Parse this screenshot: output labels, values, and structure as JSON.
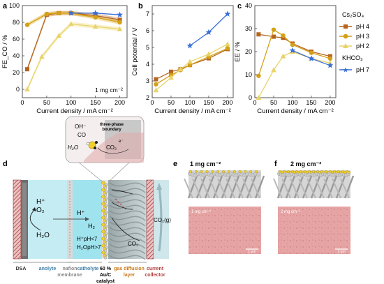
{
  "panel_labels": {
    "a": "a",
    "b": "b",
    "c": "c",
    "d": "d",
    "e": "e",
    "f": "f"
  },
  "colors": {
    "ph4": "#b5651d",
    "ph3": "#d4a017",
    "ph2": "#e8d36a",
    "ph7": "#3a6fd8",
    "ph4_fill": "#cf8a4a",
    "ph3_fill": "#e3b844",
    "ph2_fill": "#f0e08f"
  },
  "legend": {
    "group1": "Cs₂SO₄",
    "group2": "KHCO₃",
    "ph4": "pH 4",
    "ph3": "pH 3",
    "ph2": "pH 2",
    "ph7": "pH 7"
  },
  "chart_data": [
    {
      "id": "a",
      "type": "line",
      "ylabel": "FE_CO / %",
      "xlabel": "Current density / mA cm⁻²",
      "xlim": [
        0,
        215
      ],
      "ylim": [
        -10,
        100
      ],
      "xticks": [
        0,
        50,
        100,
        150,
        200
      ],
      "yticks": [
        0,
        20,
        40,
        60,
        80,
        100
      ],
      "annotation": "1 mg cm⁻²",
      "series": [
        {
          "name": "pH 4",
          "x": [
            10,
            50,
            75,
            100,
            150,
            200
          ],
          "y": [
            24,
            89,
            91,
            91,
            88,
            83
          ]
        },
        {
          "name": "pH 3",
          "x": [
            10,
            50,
            75,
            100,
            150,
            200
          ],
          "y": [
            77,
            90,
            91,
            91,
            86,
            80
          ]
        },
        {
          "name": "pH 2",
          "x": [
            10,
            40,
            75,
            100,
            150,
            200
          ],
          "y": [
            0,
            39,
            64,
            78,
            75,
            72
          ]
        },
        {
          "name": "pH 7",
          "x": [
            100,
            150,
            200
          ],
          "y": [
            91,
            91,
            89
          ]
        }
      ]
    },
    {
      "id": "b",
      "type": "line",
      "ylabel": "Cell potential / V",
      "xlabel": "Current density / mA cm⁻²",
      "xlim": [
        0,
        215
      ],
      "ylim": [
        2,
        7.5
      ],
      "xticks": [
        0,
        50,
        100,
        150,
        200
      ],
      "yticks": [
        2,
        3,
        4,
        5,
        6,
        7
      ],
      "series": [
        {
          "name": "pH 4",
          "x": [
            10,
            50,
            75,
            100,
            150,
            200
          ],
          "y": [
            3.1,
            3.55,
            3.7,
            3.95,
            4.35,
            4.9
          ]
        },
        {
          "name": "pH 3",
          "x": [
            10,
            50,
            75,
            100,
            150,
            200
          ],
          "y": [
            2.8,
            3.35,
            3.65,
            3.95,
            4.45,
            4.95
          ]
        },
        {
          "name": "pH 2",
          "x": [
            10,
            50,
            75,
            100,
            150,
            200
          ],
          "y": [
            2.45,
            3.2,
            3.7,
            4.15,
            4.6,
            5.2
          ]
        },
        {
          "name": "pH 7",
          "x": [
            100,
            150,
            200
          ],
          "y": [
            5.1,
            5.9,
            7.0
          ]
        }
      ]
    },
    {
      "id": "c",
      "type": "line",
      "ylabel": "EE / %",
      "xlabel": "Current density / mA cm⁻²",
      "xlim": [
        0,
        215
      ],
      "ylim": [
        0,
        40
      ],
      "xticks": [
        0,
        50,
        100,
        150,
        200
      ],
      "yticks": [
        0,
        10,
        20,
        30,
        40
      ],
      "series": [
        {
          "name": "pH 4",
          "x": [
            10,
            50,
            75,
            100,
            150,
            200
          ],
          "y": [
            27.5,
            26.5,
            26,
            23.5,
            20,
            18
          ]
        },
        {
          "name": "pH 3",
          "x": [
            10,
            50,
            75,
            100,
            150,
            200
          ],
          "y": [
            9.5,
            29.5,
            27,
            23,
            19.5,
            17
          ]
        },
        {
          "name": "pH 2",
          "x": [
            10,
            50,
            75,
            100,
            150,
            200
          ],
          "y": [
            0,
            12,
            18,
            20,
            17,
            15
          ]
        },
        {
          "name": "pH 7",
          "x": [
            100,
            150,
            200
          ],
          "y": [
            20.5,
            17,
            14
          ]
        }
      ]
    }
  ],
  "schematic": {
    "three_phase": "three-phase",
    "boundary": "boundary",
    "oh": "OH⁻",
    "co": "CO",
    "h2o": "H₂O",
    "co2_bubble": "CO₂",
    "e": "e⁻",
    "hplus": "H⁺",
    "o2": "O₂",
    "h2o_anode": "H₂O",
    "hplus_mem": "H⁺",
    "h2": "H₂",
    "h_ph": "H⁺pH<7",
    "h2o_ph": "H₂OpH>7",
    "co2_inner": "CO₂",
    "co2_gas": "CO₂(g)",
    "labels": {
      "dsa": "DSA",
      "anolyte": "anolyte",
      "nafion1": "nafion",
      "nafion2": "membrane",
      "catholyte": "catholyte",
      "catalyst1": "60 %",
      "catalyst2": "Au/C",
      "catalyst3": "catalyst",
      "gdl1": "gas diffusion",
      "gdl2": "layer",
      "cc1": "current",
      "cc2": "collector"
    }
  },
  "micrographs": {
    "e_title": "1 mg cm⁻²",
    "f_title": "2 mg cm⁻²",
    "e_inset": "1 mg cm⁻²",
    "f_inset": "2 mg cm⁻²",
    "scale": "1 μm"
  }
}
